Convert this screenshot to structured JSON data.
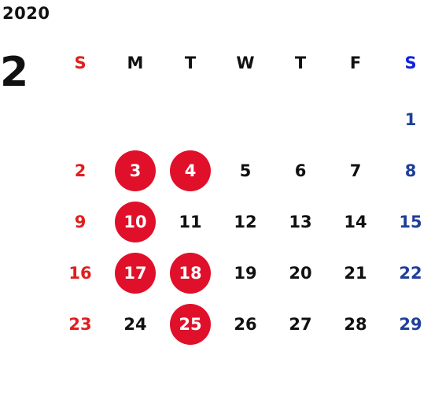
{
  "year": "2020",
  "month": "2",
  "weekdays": [
    "S",
    "M",
    "T",
    "W",
    "T",
    "F",
    "S"
  ],
  "weeks": [
    [
      {
        "d": ""
      },
      {
        "d": ""
      },
      {
        "d": ""
      },
      {
        "d": ""
      },
      {
        "d": ""
      },
      {
        "d": ""
      },
      {
        "d": "1"
      }
    ],
    [
      {
        "d": "2"
      },
      {
        "d": "3",
        "hl": true
      },
      {
        "d": "4",
        "hl": true
      },
      {
        "d": "5"
      },
      {
        "d": "6"
      },
      {
        "d": "7"
      },
      {
        "d": "8"
      }
    ],
    [
      {
        "d": "9"
      },
      {
        "d": "10",
        "hl": true
      },
      {
        "d": "11"
      },
      {
        "d": "12"
      },
      {
        "d": "13"
      },
      {
        "d": "14"
      },
      {
        "d": "15"
      }
    ],
    [
      {
        "d": "16"
      },
      {
        "d": "17",
        "hl": true
      },
      {
        "d": "18",
        "hl": true
      },
      {
        "d": "19"
      },
      {
        "d": "20"
      },
      {
        "d": "21"
      },
      {
        "d": "22"
      }
    ],
    [
      {
        "d": "23"
      },
      {
        "d": "24"
      },
      {
        "d": "25",
        "hl": true
      },
      {
        "d": "26"
      },
      {
        "d": "27"
      },
      {
        "d": "28"
      },
      {
        "d": "29"
      }
    ]
  ],
  "colors": {
    "sunday": "#e01e1e",
    "saturday": "#1f3f99",
    "saturday_header": "#1020e0",
    "highlight": "#e0102a",
    "text": "#111111"
  }
}
